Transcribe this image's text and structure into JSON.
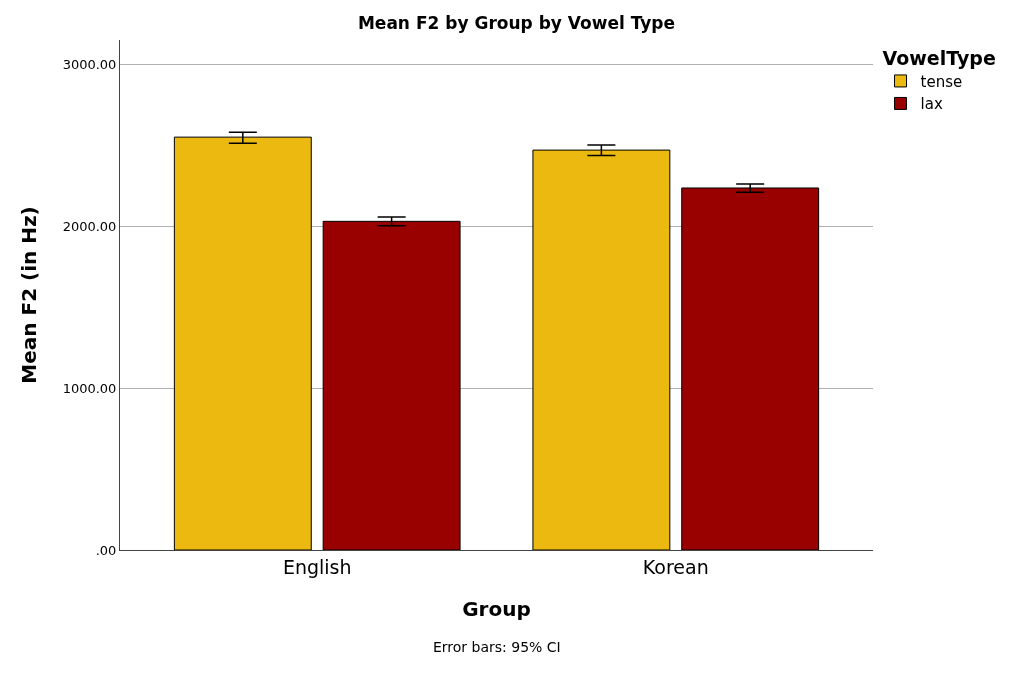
{
  "chart_data": {
    "type": "bar",
    "title": "Mean F2 by Group by Vowel Type",
    "xlabel": "Group",
    "ylabel": "Mean F2 (in Hz)",
    "legend_title": "VowelType",
    "categories": [
      "English",
      "Korean"
    ],
    "series": [
      {
        "name": "tense",
        "color": "#ebb90f",
        "values": [
          2550,
          2470
        ],
        "errors": [
          [
            2512,
            2580
          ],
          [
            2436,
            2502
          ]
        ]
      },
      {
        "name": "lax",
        "color": "#990000",
        "values": [
          2030,
          2236
        ],
        "errors": [
          [
            2003,
            2056
          ],
          [
            2210,
            2260
          ]
        ]
      }
    ],
    "ylim": [
      0,
      3150
    ],
    "yticks": [
      {
        "value": 0,
        "label": ".00"
      },
      {
        "value": 1000,
        "label": "1000.00"
      },
      {
        "value": 2000,
        "label": "2000.00"
      },
      {
        "value": 3000,
        "label": "3000.00"
      }
    ],
    "grid": "y",
    "legend": "top right",
    "annotations": [
      "Error bars: 95% CI"
    ]
  }
}
